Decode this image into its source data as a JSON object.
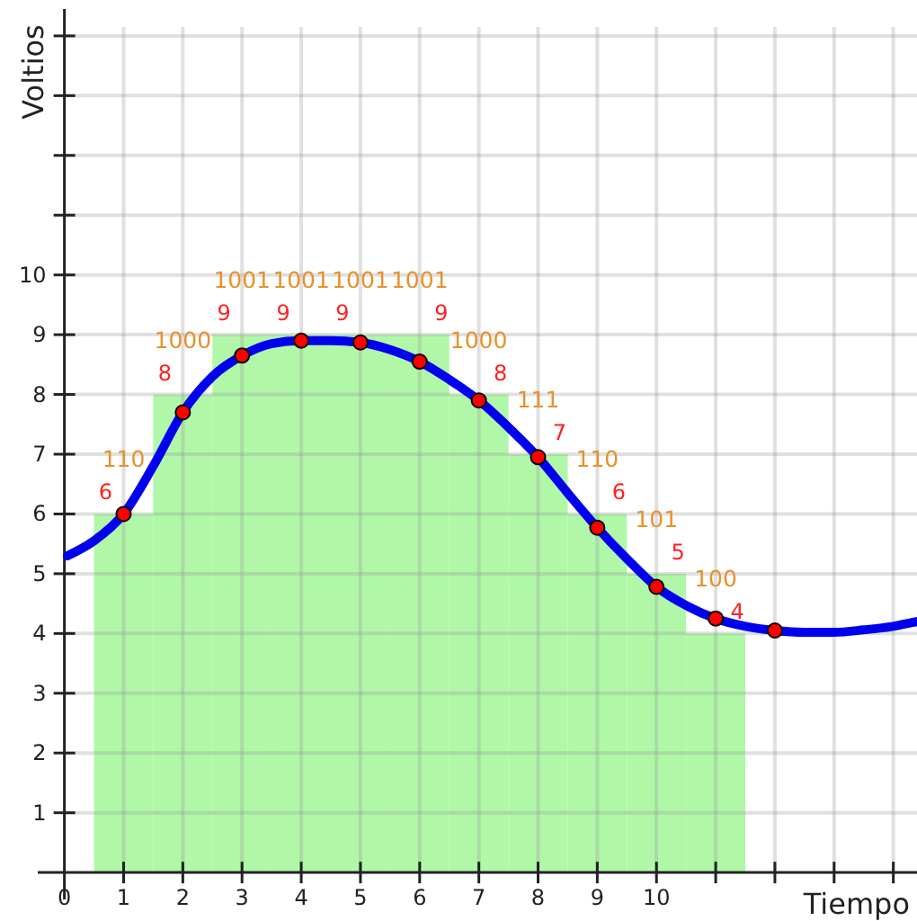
{
  "chart_data": {
    "type": "bar",
    "xlabel": "Tiempo",
    "ylabel": "Voltios",
    "xlim": [
      -0.45,
      14.4
    ],
    "ylim": [
      -0.45,
      14.45
    ],
    "xticks": [
      0,
      1,
      2,
      3,
      4,
      5,
      6,
      7,
      8,
      9,
      10,
      {
        "value": 11,
        "label": null
      },
      {
        "value": 12,
        "label": null
      },
      {
        "value": 13,
        "label": null
      },
      {
        "value": 14,
        "label": null
      }
    ],
    "yticks": [
      1,
      2,
      3,
      4,
      5,
      6,
      7,
      8,
      9,
      10,
      {
        "value": 11,
        "label": null
      },
      {
        "value": 12,
        "label": null
      },
      {
        "value": 13,
        "label": null
      },
      {
        "value": 14,
        "label": null
      }
    ],
    "grid": true,
    "series": [
      {
        "color": "#b0f8a8",
        "x": [
          1,
          2,
          3,
          4,
          5,
          6,
          7,
          8,
          9,
          10,
          11
        ],
        "values": [
          6,
          8,
          9,
          9,
          9,
          9,
          8,
          7,
          6,
          5,
          4
        ],
        "value_labels": [
          "6",
          "8",
          "9",
          "9",
          "9",
          "9",
          "8",
          "7",
          "6",
          "5",
          "4"
        ]
      },
      {
        "type": "line",
        "color": "#0000ee",
        "marker": "none",
        "x": [
          0.05,
          0.5,
          1,
          1.5,
          2,
          2.5,
          3,
          3.5,
          4,
          4.5,
          5,
          5.5,
          6,
          6.5,
          7,
          7.5,
          8,
          8.5,
          9,
          9.5,
          10,
          10.5,
          11,
          11.5,
          12,
          12.5,
          13,
          13.5,
          14,
          14.4
        ],
        "values": [
          5.3,
          5.55,
          6.0,
          6.8,
          7.7,
          8.3,
          8.65,
          8.85,
          8.9,
          8.9,
          8.87,
          8.75,
          8.55,
          8.25,
          7.9,
          7.45,
          6.95,
          6.35,
          5.77,
          5.25,
          4.78,
          4.47,
          4.25,
          4.12,
          4.05,
          4.02,
          4.02,
          4.06,
          4.12,
          4.2
        ]
      },
      {
        "type": "scatter",
        "color": "#ff0000",
        "marker": "circle",
        "x": [
          1,
          2,
          3,
          4,
          5,
          6,
          7,
          8,
          9,
          10,
          11,
          12
        ],
        "values": [
          6.0,
          7.7,
          8.65,
          8.9,
          8.87,
          8.55,
          7.9,
          6.95,
          5.77,
          4.78,
          4.25,
          4.05
        ]
      }
    ],
    "annotations": [
      {
        "text": "110",
        "x": 1,
        "y": 6
      },
      {
        "text": "1000",
        "x": 2,
        "y": 8
      },
      {
        "text": "1001",
        "x": 3,
        "y": 9
      },
      {
        "text": "1001",
        "x": 4,
        "y": 9
      },
      {
        "text": "1001",
        "x": 5,
        "y": 9
      },
      {
        "text": "1001",
        "x": 6,
        "y": 9
      },
      {
        "text": "1000",
        "x": 7,
        "y": 8
      },
      {
        "text": "111",
        "x": 8,
        "y": 7
      },
      {
        "text": "110",
        "x": 9,
        "y": 6
      },
      {
        "text": "101",
        "x": 10,
        "y": 5
      },
      {
        "text": "100",
        "x": 11,
        "y": 4
      }
    ]
  }
}
